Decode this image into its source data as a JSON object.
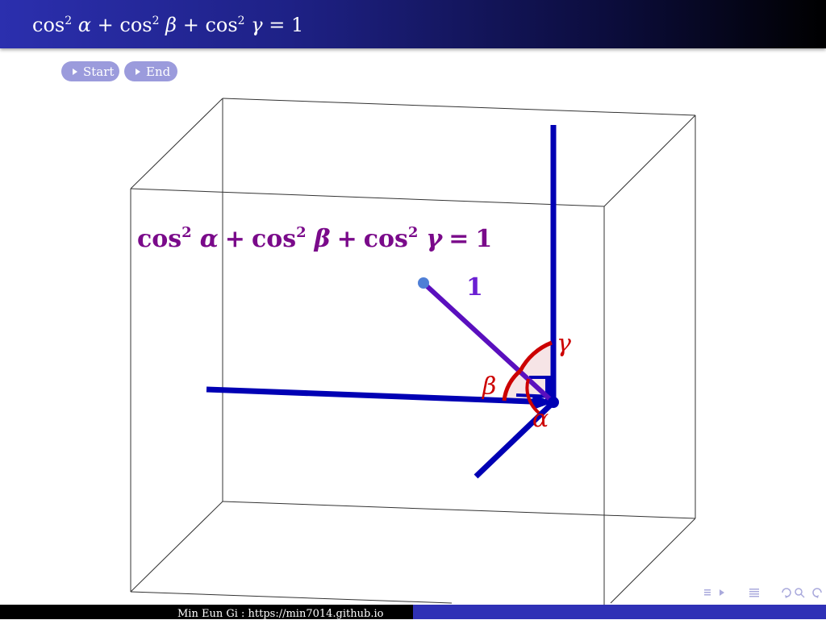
{
  "header": {
    "title_parts": [
      "cos",
      "2",
      "α",
      "+",
      "cos",
      "2",
      "β",
      "+",
      "cos",
      "2",
      "γ",
      "=",
      "1"
    ]
  },
  "controls": {
    "start_label": "Start",
    "end_label": "End"
  },
  "diagram": {
    "formula": "cos² α + cos² β + cos² γ = 1",
    "vector_label": "1",
    "angle_labels": {
      "alpha": "α",
      "beta": "β",
      "gamma": "γ"
    },
    "colors": {
      "axis": "#0000b4",
      "vector": "#5a0fbe",
      "angle_arc": "#cc0000",
      "angle_fill": "#f6e4e6",
      "formula": "#7a0a8a",
      "label_one": "#6a1fd2",
      "point": "#4f7fd6",
      "box": "#333333"
    }
  },
  "footer": {
    "credit": "Min Eun Gi : https://min7014.github.io"
  },
  "nav_icons": [
    "frame-prev-icon",
    "frame-next-icon",
    "section-icon",
    "search-icon",
    "zoom-icon"
  ]
}
